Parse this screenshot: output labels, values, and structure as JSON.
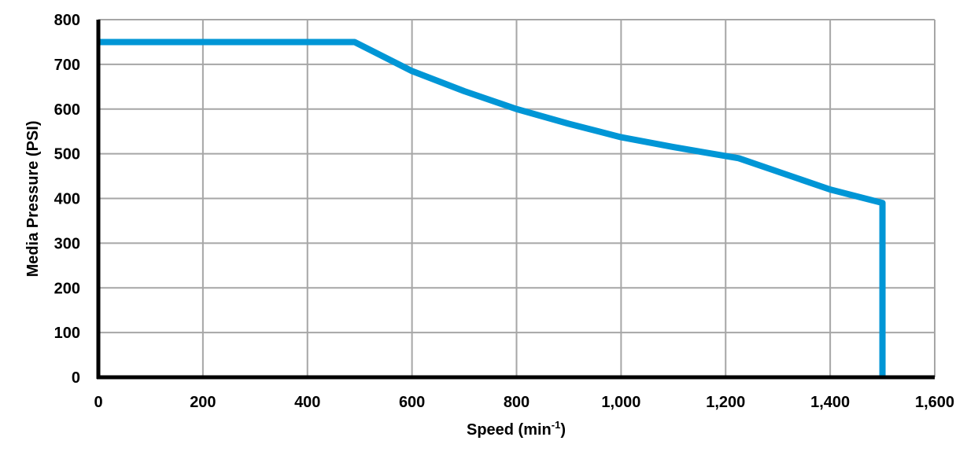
{
  "chart_data": {
    "type": "line",
    "title": "",
    "xlabel": "Speed (min",
    "xlabel_sup": "-1",
    "xlabel_end": ")",
    "ylabel": "Media Pressure (PSI)",
    "xlim": [
      0,
      1600
    ],
    "ylim": [
      0,
      800
    ],
    "grid": true,
    "legend": null,
    "x_ticks": [
      "0",
      "200",
      "400",
      "600",
      "800",
      "1,000",
      "1,200",
      "1,400",
      "1,600"
    ],
    "y_ticks": [
      "0",
      "100",
      "200",
      "300",
      "400",
      "500",
      "600",
      "700",
      "800"
    ],
    "series": [
      {
        "name": "Media Pressure",
        "color": "#0096d6",
        "points": [
          [
            0,
            750
          ],
          [
            490,
            750
          ],
          [
            600,
            685
          ],
          [
            700,
            640
          ],
          [
            800,
            600
          ],
          [
            900,
            567
          ],
          [
            1000,
            537
          ],
          [
            1100,
            515
          ],
          [
            1225,
            490
          ],
          [
            1300,
            460
          ],
          [
            1400,
            420
          ],
          [
            1500,
            390
          ],
          [
            1500,
            0
          ]
        ]
      }
    ]
  },
  "colors": {
    "line": "#0096d6",
    "grid": "#a6a6a6",
    "axis": "#000000"
  }
}
